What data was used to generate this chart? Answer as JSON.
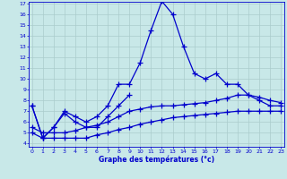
{
  "xlabel": "Graphe des températures (°c)",
  "hours": [
    0,
    1,
    2,
    3,
    4,
    5,
    6,
    7,
    8,
    9,
    10,
    11,
    12,
    13,
    14,
    15,
    16,
    17,
    18,
    19,
    20,
    21,
    22,
    23
  ],
  "line1": [
    7.5,
    4.5,
    5.5,
    7.0,
    6.5,
    6.0,
    6.5,
    7.5,
    9.5,
    9.5,
    11.5,
    14.5,
    17.2,
    16.0,
    13.0,
    10.5,
    10.0,
    10.5,
    9.5,
    9.5,
    8.5,
    8.0,
    7.5,
    7.5
  ],
  "line2": [
    7.5,
    4.5,
    5.5,
    6.8,
    6.0,
    5.5,
    5.5,
    6.5,
    7.5,
    8.5,
    null,
    null,
    null,
    null,
    null,
    null,
    null,
    null,
    null,
    null,
    null,
    null,
    null,
    null
  ],
  "line3": [
    5.5,
    5.0,
    5.0,
    5.0,
    5.2,
    5.5,
    5.7,
    6.0,
    6.5,
    7.0,
    7.2,
    7.4,
    7.5,
    7.5,
    7.6,
    7.7,
    7.8,
    8.0,
    8.2,
    8.5,
    8.5,
    8.3,
    8.0,
    7.8
  ],
  "line4": [
    5.0,
    4.5,
    4.5,
    4.5,
    4.5,
    4.5,
    4.8,
    5.0,
    5.3,
    5.5,
    5.8,
    6.0,
    6.2,
    6.4,
    6.5,
    6.6,
    6.7,
    6.8,
    6.9,
    7.0,
    7.0,
    7.0,
    7.0,
    7.0
  ],
  "line_color": "#0000cc",
  "bg_color": "#c8e8e8",
  "grid_color": "#aacccc",
  "ylim_min": 4,
  "ylim_max": 17,
  "yticks": [
    4,
    5,
    6,
    7,
    8,
    9,
    10,
    11,
    12,
    13,
    14,
    15,
    16,
    17
  ],
  "xticks": [
    0,
    1,
    2,
    3,
    4,
    5,
    6,
    7,
    8,
    9,
    10,
    11,
    12,
    13,
    14,
    15,
    16,
    17,
    18,
    19,
    20,
    21,
    22,
    23
  ],
  "markersize": 4,
  "linewidth": 0.9
}
